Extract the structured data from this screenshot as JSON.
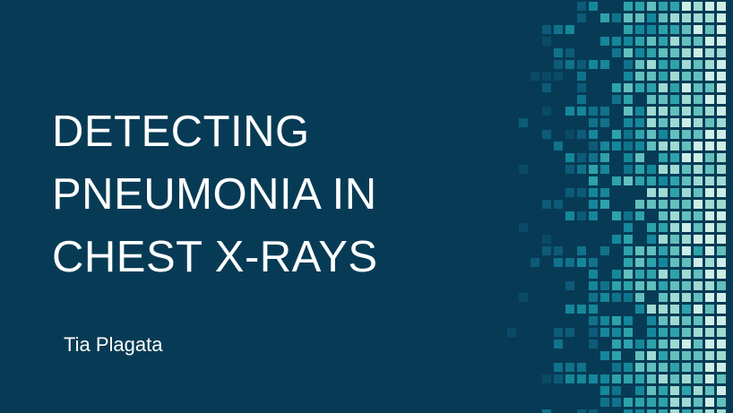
{
  "slide": {
    "title_lines": [
      "DETECTING",
      "PNEUMONIA IN",
      "CHEST X-RAYS"
    ],
    "author": "Tia Plagata"
  },
  "theme": {
    "background": "#073b55",
    "text": "#ffffff",
    "tile_palette": [
      "#0a4a66",
      "#0d5b78",
      "#11728b",
      "#15879b",
      "#2ea2aa",
      "#63bfbd",
      "#9fdad3",
      "#cdeee7"
    ]
  },
  "decoration": {
    "name": "pixel-gradient-pattern",
    "style": "column-graded random squares fading from dark teal to pale aqua"
  }
}
